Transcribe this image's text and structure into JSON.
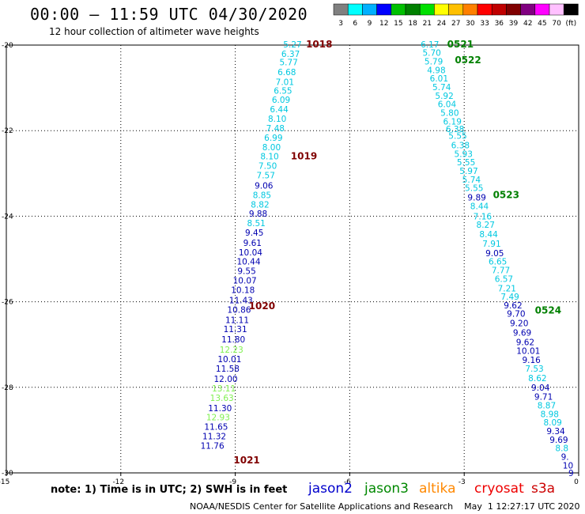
{
  "header": {
    "title": "00:00 – 11:59 UTC 04/30/2020",
    "subtitle": "12 hour collection of altimeter wave heights"
  },
  "legend": {
    "ticks": [
      "3",
      "6",
      "9",
      "12",
      "15",
      "18",
      "21",
      "24",
      "27",
      "30",
      "33",
      "36",
      "39",
      "42",
      "45",
      "70",
      "(ft)"
    ],
    "colors": [
      "#808080",
      "#00ffff",
      "#00b0ff",
      "#0000ff",
      "#00c000",
      "#008000",
      "#00e000",
      "#ffff00",
      "#ffc000",
      "#ff8000",
      "#ff0000",
      "#c00000",
      "#800000",
      "#800080",
      "#ff00ff",
      "#ffc0ff",
      "#000000"
    ]
  },
  "footer": {
    "note": "note:  1) Time is in UTC;  2) SWH is in feet",
    "credit": "NOAA/NESDIS Center for Satellite Applications and Research    May  1 12:27:17 UTC 2020",
    "satellites": [
      {
        "name": "jason2",
        "color": "#0000cc"
      },
      {
        "name": "jason3",
        "color": "#008800"
      },
      {
        "name": "altika",
        "color": "#ff8800"
      },
      {
        "name": "cryosat",
        "color": "#ee0000"
      },
      {
        "name": "s3a",
        "color": "#cc0000"
      }
    ]
  },
  "chart_data": {
    "type": "scatter",
    "xlim": [
      -15,
      0
    ],
    "ylim": [
      -30,
      -20
    ],
    "xticks": [
      "-15",
      "-12",
      "-9",
      "-6",
      "-3",
      "0"
    ],
    "yticks": [
      "-20",
      "-22",
      "-24",
      "-26",
      "-28",
      "-30"
    ],
    "grid": true,
    "track_labels": [
      {
        "text": "1018",
        "x": -6.8,
        "y": -19.98,
        "color": "#800000"
      },
      {
        "text": "1019",
        "x": -7.2,
        "y": -22.6,
        "color": "#800000"
      },
      {
        "text": "1020",
        "x": -8.3,
        "y": -26.1,
        "color": "#800000"
      },
      {
        "text": "1021",
        "x": -8.7,
        "y": -29.7,
        "color": "#800000"
      },
      {
        "text": "0521",
        "x": -3.1,
        "y": -19.98,
        "color": "#008000"
      },
      {
        "text": "0522",
        "x": -2.9,
        "y": -20.35,
        "color": "#008000"
      },
      {
        "text": "0523",
        "x": -1.9,
        "y": -23.5,
        "color": "#008000"
      },
      {
        "text": "0524",
        "x": -0.8,
        "y": -26.2,
        "color": "#008000"
      }
    ],
    "series": [
      {
        "color_key": "jason2-track",
        "points": [
          {
            "x": -7.5,
            "y": -19.98,
            "v": "5.27",
            "c": "#00c8e0"
          },
          {
            "x": -7.55,
            "y": -20.2,
            "v": "6.37",
            "c": "#00c8e0"
          },
          {
            "x": -7.6,
            "y": -20.4,
            "v": "5.77",
            "c": "#00c8e0"
          },
          {
            "x": -7.65,
            "y": -20.63,
            "v": "6.68",
            "c": "#00c8e0"
          },
          {
            "x": -7.7,
            "y": -20.86,
            "v": "7.01",
            "c": "#00c8e0"
          },
          {
            "x": -7.75,
            "y": -21.06,
            "v": "6.55",
            "c": "#00c8e0"
          },
          {
            "x": -7.8,
            "y": -21.28,
            "v": "6.09",
            "c": "#00c8e0"
          },
          {
            "x": -7.85,
            "y": -21.5,
            "v": "6.44",
            "c": "#00c8e0"
          },
          {
            "x": -7.9,
            "y": -21.72,
            "v": "8.10",
            "c": "#00c8e0"
          },
          {
            "x": -7.95,
            "y": -21.94,
            "v": "7.48",
            "c": "#00c8e0"
          },
          {
            "x": -8.0,
            "y": -22.16,
            "v": "6.99",
            "c": "#00c8e0"
          },
          {
            "x": -8.05,
            "y": -22.38,
            "v": "8.00",
            "c": "#00c8e0"
          },
          {
            "x": -8.1,
            "y": -22.6,
            "v": "8.10",
            "c": "#00c8e0"
          },
          {
            "x": -8.15,
            "y": -22.82,
            "v": "7.50",
            "c": "#00c8e0"
          },
          {
            "x": -8.2,
            "y": -23.04,
            "v": "7.57",
            "c": "#00c8e0"
          },
          {
            "x": -8.25,
            "y": -23.28,
            "v": "9.06",
            "c": "#0000b0"
          },
          {
            "x": -8.3,
            "y": -23.5,
            "v": "8.85",
            "c": "#00c8e0"
          },
          {
            "x": -8.35,
            "y": -23.72,
            "v": "8.82",
            "c": "#00c8e0"
          },
          {
            "x": -8.4,
            "y": -23.94,
            "v": "9.88",
            "c": "#0000b0"
          },
          {
            "x": -8.45,
            "y": -24.16,
            "v": "8.51",
            "c": "#00c8e0"
          },
          {
            "x": -8.5,
            "y": -24.38,
            "v": "9.45",
            "c": "#0000b0"
          },
          {
            "x": -8.55,
            "y": -24.62,
            "v": "9.61",
            "c": "#0000b0"
          },
          {
            "x": -8.6,
            "y": -24.84,
            "v": "10.04",
            "c": "#0000b0"
          },
          {
            "x": -8.65,
            "y": -25.06,
            "v": "10.44",
            "c": "#0000b0"
          },
          {
            "x": -8.7,
            "y": -25.28,
            "v": "9.55",
            "c": "#0000b0"
          },
          {
            "x": -8.75,
            "y": -25.5,
            "v": "10.07",
            "c": "#0000b0"
          },
          {
            "x": -8.8,
            "y": -25.72,
            "v": "10.18",
            "c": "#0000b0"
          },
          {
            "x": -8.85,
            "y": -25.96,
            "v": "11.43",
            "c": "#0000b0"
          },
          {
            "x": -8.9,
            "y": -26.18,
            "v": "10.86",
            "c": "#0000b0"
          },
          {
            "x": -8.95,
            "y": -26.42,
            "v": "11.11",
            "c": "#0000b0"
          },
          {
            "x": -9.0,
            "y": -26.64,
            "v": "11.31",
            "c": "#0000b0"
          },
          {
            "x": -9.05,
            "y": -26.88,
            "v": "11.80",
            "c": "#0000b0"
          },
          {
            "x": -9.1,
            "y": -27.12,
            "v": "12.23",
            "c": "#80f050"
          },
          {
            "x": -9.15,
            "y": -27.34,
            "v": "10.01",
            "c": "#0000b0"
          },
          {
            "x": -9.2,
            "y": -27.56,
            "v": "11.58",
            "c": "#0000b0"
          },
          {
            "x": -9.25,
            "y": -27.8,
            "v": "12.00",
            "c": "#0000b0"
          },
          {
            "x": -9.3,
            "y": -28.02,
            "v": "13.11",
            "c": "#80f050"
          },
          {
            "x": -9.35,
            "y": -28.24,
            "v": "13.63",
            "c": "#80f050"
          },
          {
            "x": -9.4,
            "y": -28.48,
            "v": "11.30",
            "c": "#0000b0"
          },
          {
            "x": -9.45,
            "y": -28.7,
            "v": "12.93",
            "c": "#80f050"
          },
          {
            "x": -9.5,
            "y": -28.92,
            "v": "11.65",
            "c": "#0000b0"
          },
          {
            "x": -9.55,
            "y": -29.14,
            "v": "11.32",
            "c": "#0000b0"
          },
          {
            "x": -9.6,
            "y": -29.36,
            "v": "11.76",
            "c": "#0000b0"
          }
        ]
      },
      {
        "color_key": "jason3-track",
        "points": [
          {
            "x": -3.9,
            "y": -19.98,
            "v": "6.17",
            "c": "#00c8e0"
          },
          {
            "x": -3.85,
            "y": -20.18,
            "v": "5.70",
            "c": "#00c8e0"
          },
          {
            "x": -3.8,
            "y": -20.38,
            "v": "5.79",
            "c": "#00c8e0"
          },
          {
            "x": -3.73,
            "y": -20.58,
            "v": "4.98",
            "c": "#00c8e0"
          },
          {
            "x": -3.66,
            "y": -20.78,
            "v": "6.01",
            "c": "#00c8e0"
          },
          {
            "x": -3.59,
            "y": -20.98,
            "v": "5.74",
            "c": "#00c8e0"
          },
          {
            "x": -3.52,
            "y": -21.18,
            "v": "5.92",
            "c": "#00c8e0"
          },
          {
            "x": -3.45,
            "y": -21.38,
            "v": "6.04",
            "c": "#00c8e0"
          },
          {
            "x": -3.38,
            "y": -21.58,
            "v": "5.80",
            "c": "#00c8e0"
          },
          {
            "x": -3.31,
            "y": -21.78,
            "v": "6.19",
            "c": "#00c8e0"
          },
          {
            "x": -3.24,
            "y": -21.96,
            "v": "6.38",
            "c": "#00c8e0"
          },
          {
            "x": -3.17,
            "y": -22.12,
            "v": "5.55",
            "c": "#00c8e0"
          },
          {
            "x": -3.1,
            "y": -22.34,
            "v": "6.38",
            "c": "#00c8e0"
          },
          {
            "x": -3.02,
            "y": -22.54,
            "v": "5.93",
            "c": "#00c8e0"
          },
          {
            "x": -2.95,
            "y": -22.74,
            "v": "5.55",
            "c": "#00c8e0"
          },
          {
            "x": -2.88,
            "y": -22.94,
            "v": "5.97",
            "c": "#00c8e0"
          },
          {
            "x": -2.81,
            "y": -23.14,
            "v": "5.74",
            "c": "#00c8e0"
          },
          {
            "x": -2.74,
            "y": -23.34,
            "v": "5.55",
            "c": "#00c8e0"
          },
          {
            "x": -2.67,
            "y": -23.56,
            "v": "9.89",
            "c": "#0000b0"
          },
          {
            "x": -2.6,
            "y": -23.76,
            "v": "8.44",
            "c": "#00c8e0"
          },
          {
            "x": -2.52,
            "y": -24.0,
            "v": "7.16",
            "c": "#00c8e0"
          },
          {
            "x": -2.44,
            "y": -24.2,
            "v": "8.27",
            "c": "#00c8e0"
          },
          {
            "x": -2.36,
            "y": -24.42,
            "v": "8.44",
            "c": "#00c8e0"
          },
          {
            "x": -2.28,
            "y": -24.64,
            "v": "7.91",
            "c": "#00c8e0"
          },
          {
            "x": -2.2,
            "y": -24.86,
            "v": "9.05",
            "c": "#0000b0"
          },
          {
            "x": -2.12,
            "y": -25.06,
            "v": "6.65",
            "c": "#00c8e0"
          },
          {
            "x": -2.04,
            "y": -25.26,
            "v": "7.77",
            "c": "#00c8e0"
          },
          {
            "x": -1.96,
            "y": -25.46,
            "v": "6.57",
            "c": "#00c8e0"
          },
          {
            "x": -1.88,
            "y": -25.68,
            "v": "7.21",
            "c": "#00c8e0"
          },
          {
            "x": -1.8,
            "y": -25.88,
            "v": "7.49",
            "c": "#00c8e0"
          },
          {
            "x": -1.72,
            "y": -26.08,
            "v": "9.62",
            "c": "#0000b0"
          },
          {
            "x": -1.64,
            "y": -26.28,
            "v": "9.70",
            "c": "#0000b0"
          },
          {
            "x": -1.56,
            "y": -26.5,
            "v": "9.20",
            "c": "#0000b0"
          },
          {
            "x": -1.48,
            "y": -26.72,
            "v": "9.69",
            "c": "#0000b0"
          },
          {
            "x": -1.4,
            "y": -26.94,
            "v": "9.62",
            "c": "#0000b0"
          },
          {
            "x": -1.32,
            "y": -27.14,
            "v": "10.01",
            "c": "#0000b0"
          },
          {
            "x": -1.24,
            "y": -27.36,
            "v": "9.16",
            "c": "#0000b0"
          },
          {
            "x": -1.16,
            "y": -27.56,
            "v": "7.53",
            "c": "#00c8e0"
          },
          {
            "x": -1.08,
            "y": -27.78,
            "v": "8.62",
            "c": "#00c8e0"
          },
          {
            "x": -1.0,
            "y": -28.0,
            "v": "9.04",
            "c": "#0000b0"
          },
          {
            "x": -0.92,
            "y": -28.22,
            "v": "9.71",
            "c": "#0000b0"
          },
          {
            "x": -0.84,
            "y": -28.42,
            "v": "8.87",
            "c": "#00c8e0"
          },
          {
            "x": -0.76,
            "y": -28.62,
            "v": "8.98",
            "c": "#00c8e0"
          },
          {
            "x": -0.68,
            "y": -28.82,
            "v": "8.09",
            "c": "#00c8e0"
          },
          {
            "x": -0.6,
            "y": -29.02,
            "v": "9.34",
            "c": "#0000b0"
          },
          {
            "x": -0.52,
            "y": -29.22,
            "v": "9.69",
            "c": "#0000b0"
          },
          {
            "x": -0.44,
            "y": -29.42,
            "v": "8.8",
            "c": "#00c8e0"
          },
          {
            "x": -0.36,
            "y": -29.62,
            "v": "9.",
            "c": "#0000b0"
          },
          {
            "x": -0.28,
            "y": -29.82,
            "v": "10",
            "c": "#0000b0"
          },
          {
            "x": -0.2,
            "y": -30.0,
            "v": "9",
            "c": "#0000b0"
          }
        ]
      }
    ]
  }
}
